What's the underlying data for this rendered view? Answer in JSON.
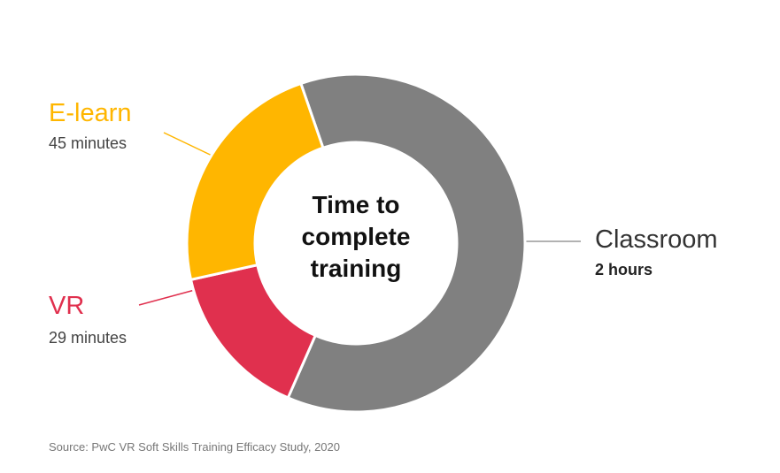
{
  "chart_data": {
    "type": "donut",
    "title": "Time to complete training",
    "categories": [
      "Classroom",
      "VR",
      "E-learn"
    ],
    "values": [
      120,
      29,
      45
    ],
    "value_labels": [
      "2 hours",
      "29 minutes",
      "45 minutes"
    ],
    "colors": [
      "#808080",
      "#e0304e",
      "#ffb600"
    ],
    "source": "Source: PwC VR Soft Skills Training Efficacy Study, 2020"
  }
}
